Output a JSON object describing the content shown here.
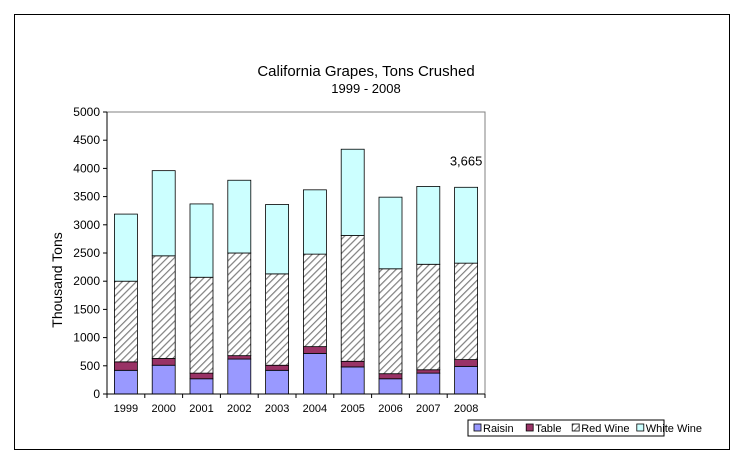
{
  "chart_data": {
    "type": "bar",
    "stacked": true,
    "title": "California Grapes, Tons Crushed",
    "subtitle": "1999 - 2008",
    "xlabel": "",
    "ylabel": "Thousand Tons",
    "ylim": [
      0,
      5000
    ],
    "yticks": [
      0,
      500,
      1000,
      1500,
      2000,
      2500,
      3000,
      3500,
      4000,
      4500,
      5000
    ],
    "grid": false,
    "legend_position": "bottom-right",
    "categories": [
      "1999",
      "2000",
      "2001",
      "2002",
      "2003",
      "2004",
      "2005",
      "2006",
      "2007",
      "2008"
    ],
    "series": [
      {
        "name": "Raisin",
        "color": "#9999ff",
        "values": [
          420,
          510,
          270,
          620,
          420,
          720,
          480,
          270,
          370,
          490
        ]
      },
      {
        "name": "Table",
        "color": "#993366",
        "values": [
          150,
          120,
          100,
          60,
          90,
          120,
          100,
          90,
          60,
          120
        ]
      },
      {
        "name": "Red Wine",
        "color": "#a6a6a6",
        "pattern": "diagonal-hatch",
        "values": [
          1430,
          1820,
          1700,
          1820,
          1620,
          1640,
          2230,
          1860,
          1870,
          1710
        ]
      },
      {
        "name": "White Wine",
        "color": "#ccffff",
        "values": [
          1190,
          1510,
          1300,
          1290,
          1230,
          1140,
          1530,
          1270,
          1380,
          1345
        ]
      }
    ],
    "annotations": [
      {
        "category": "2008",
        "text": "3,665"
      }
    ]
  }
}
